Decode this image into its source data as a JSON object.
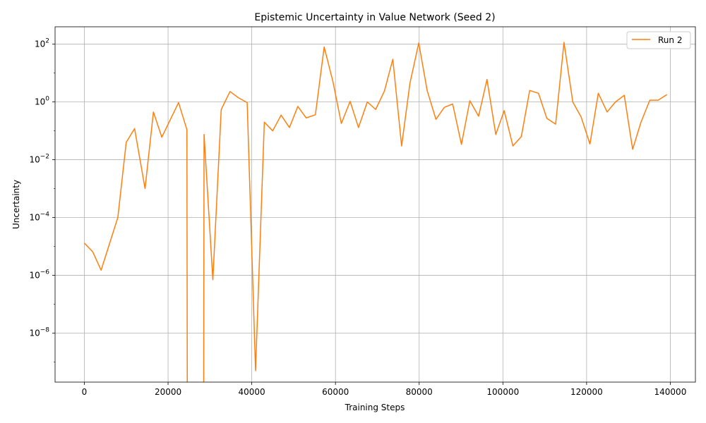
{
  "chart_data": {
    "type": "line",
    "title": "Epistemic Uncertainty in Value Network (Seed 2)",
    "xlabel": "Training Steps",
    "ylabel": "Uncertainty",
    "xlim": [
      -7000,
      146000
    ],
    "ylim": [
      2e-10,
      400
    ],
    "yscale": "log",
    "grid": true,
    "legend_position": "top-right",
    "x_ticks": [
      0,
      20000,
      40000,
      60000,
      80000,
      100000,
      120000,
      140000
    ],
    "x_tick_labels": [
      "0",
      "20000",
      "40000",
      "60000",
      "80000",
      "100000",
      "120000",
      "140000"
    ],
    "y_ticks": [
      {
        "value": 1e-08,
        "base": "10",
        "exp": "−8"
      },
      {
        "value": 1e-06,
        "base": "10",
        "exp": "−6"
      },
      {
        "value": 0.0001,
        "base": "10",
        "exp": "−4"
      },
      {
        "value": 0.01,
        "base": "10",
        "exp": "−2"
      },
      {
        "value": 1,
        "base": "10",
        "exp": "0"
      },
      {
        "value": 100,
        "base": "10",
        "exp": "2"
      }
    ],
    "series": [
      {
        "name": "Run 2",
        "color": "#ff7f0e",
        "points": [
          [
            0,
            1.3e-05
          ],
          [
            2000,
            6.5e-06
          ],
          [
            4000,
            1.5e-06
          ],
          [
            8000,
            0.0001
          ],
          [
            10000,
            0.04
          ],
          [
            12000,
            0.12
          ],
          [
            14500,
            0.001
          ],
          [
            16500,
            0.45
          ],
          [
            18500,
            0.06
          ],
          [
            22500,
            0.95
          ],
          [
            24500,
            0.11
          ],
          [
            24600,
            1e-11
          ],
          [
            28500,
            1e-11
          ],
          [
            28600,
            0.075
          ],
          [
            30700,
            7e-07
          ],
          [
            32700,
            0.55
          ],
          [
            34800,
            2.3
          ],
          [
            36800,
            1.4
          ],
          [
            38900,
            0.95
          ],
          [
            40900,
            5e-10
          ],
          [
            43000,
            0.2
          ],
          [
            45000,
            0.1
          ],
          [
            47000,
            0.35
          ],
          [
            49000,
            0.13
          ],
          [
            51000,
            0.7
          ],
          [
            53000,
            0.28
          ],
          [
            55200,
            0.36
          ],
          [
            57300,
            80
          ],
          [
            59400,
            5
          ],
          [
            61400,
            0.18
          ],
          [
            63500,
            1.05
          ],
          [
            65500,
            0.13
          ],
          [
            67600,
            1.0
          ],
          [
            69600,
            0.55
          ],
          [
            71700,
            2.4
          ],
          [
            73700,
            30
          ],
          [
            75800,
            0.03
          ],
          [
            77800,
            4.5
          ],
          [
            79900,
            110
          ],
          [
            81900,
            2.5
          ],
          [
            84000,
            0.25
          ],
          [
            86000,
            0.65
          ],
          [
            88000,
            0.85
          ],
          [
            90100,
            0.034
          ],
          [
            92100,
            1.1
          ],
          [
            94200,
            0.32
          ],
          [
            96200,
            6
          ],
          [
            98300,
            0.075
          ],
          [
            100300,
            0.5
          ],
          [
            102400,
            0.03
          ],
          [
            104400,
            0.063
          ],
          [
            106400,
            2.5
          ],
          [
            108500,
            2.0
          ],
          [
            110500,
            0.27
          ],
          [
            112600,
            0.17
          ],
          [
            114600,
            115
          ],
          [
            116700,
            1.0
          ],
          [
            118700,
            0.3
          ],
          [
            120800,
            0.035
          ],
          [
            122800,
            2.0
          ],
          [
            124900,
            0.45
          ],
          [
            126900,
            1.0
          ],
          [
            129000,
            1.7
          ],
          [
            131000,
            0.023
          ],
          [
            133000,
            0.2
          ],
          [
            135100,
            1.15
          ],
          [
            137100,
            1.15
          ],
          [
            139200,
            1.8
          ]
        ]
      }
    ]
  }
}
